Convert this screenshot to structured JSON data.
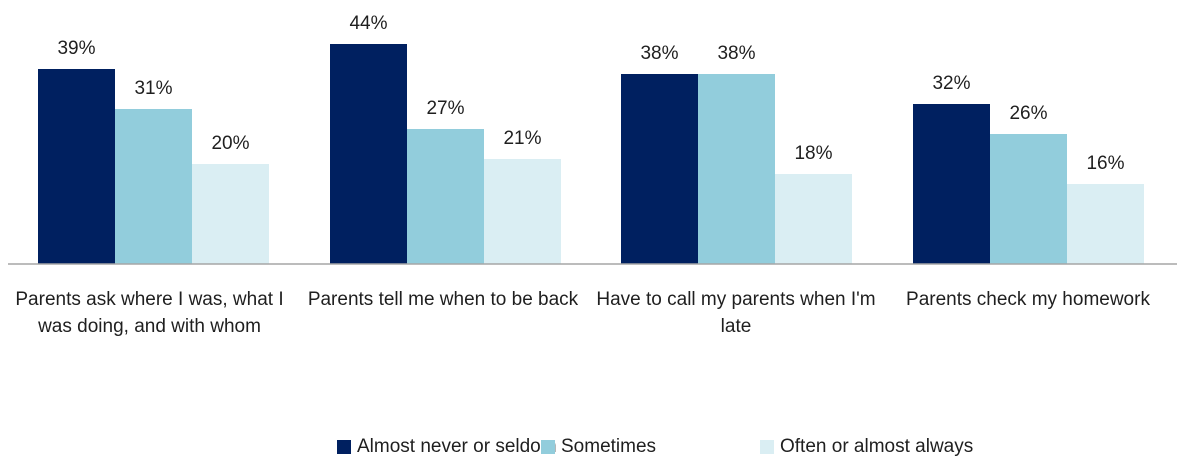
{
  "chart_data": {
    "type": "bar",
    "title": "",
    "xlabel": "",
    "ylabel": "",
    "ylim": [
      0,
      50
    ],
    "grid": false,
    "legend_position": "bottom",
    "categories": [
      "Parents ask where I was, what I was doing, and with whom",
      "Parents tell me when to be back",
      "Have to call my parents when I'm late",
      "Parents check my homework"
    ],
    "series": [
      {
        "name": "Almost never or seldom",
        "color": "#002060",
        "values": [
          39,
          44,
          38,
          32
        ],
        "labels": [
          "39%",
          "44%",
          "38%",
          "32%"
        ]
      },
      {
        "name": "Sometimes",
        "color": "#92CDDC",
        "values": [
          31,
          27,
          38,
          26
        ],
        "labels": [
          "31%",
          "27%",
          "38%",
          "26%"
        ]
      },
      {
        "name": "Often or almost always",
        "color": "#DAEEF3",
        "values": [
          20,
          21,
          18,
          16
        ],
        "labels": [
          "20%",
          "21%",
          "18%",
          "16%"
        ]
      }
    ]
  }
}
